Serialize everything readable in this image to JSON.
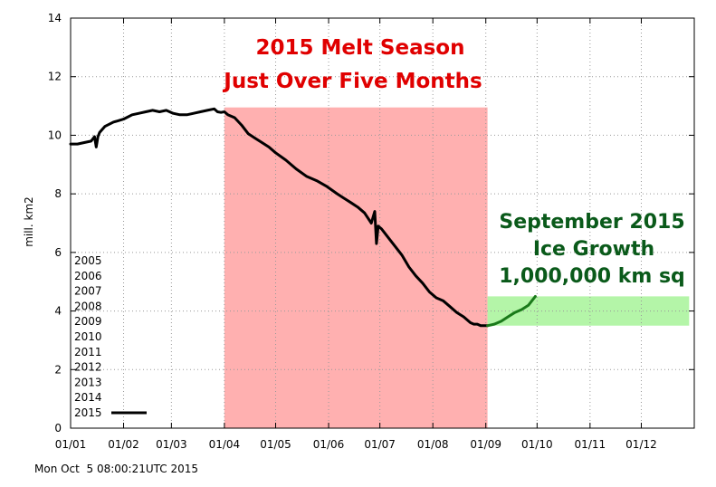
{
  "chart_data": {
    "type": "line",
    "title": "",
    "xlabel": "",
    "ylabel": "mill. km2",
    "ylim": [
      0,
      14
    ],
    "yticks": [
      0,
      2,
      4,
      6,
      8,
      10,
      12,
      14
    ],
    "xlim": [
      0,
      365
    ],
    "xticks": [
      {
        "label": "01/01",
        "day": 0
      },
      {
        "label": "01/02",
        "day": 31
      },
      {
        "label": "01/03",
        "day": 59
      },
      {
        "label": "01/04",
        "day": 90
      },
      {
        "label": "01/05",
        "day": 120
      },
      {
        "label": "01/06",
        "day": 151
      },
      {
        "label": "01/07",
        "day": 181
      },
      {
        "label": "01/08",
        "day": 212
      },
      {
        "label": "01/09",
        "day": 243
      },
      {
        "label": "01/10",
        "day": 273
      },
      {
        "label": "01/11",
        "day": 304
      },
      {
        "label": "01/12",
        "day": 334
      }
    ],
    "legend": [
      "2005",
      "2006",
      "2007",
      "2008",
      "2009",
      "2010",
      "2011",
      "2012",
      "2013",
      "2014",
      "2015"
    ],
    "legend_line_entry": "2015",
    "series": [
      {
        "name": "2015",
        "color": "#000000",
        "x": [
          0,
          4,
          8,
          12,
          14,
          15,
          16,
          17,
          20,
          25,
          28,
          31,
          36,
          40,
          44,
          48,
          52,
          56,
          60,
          64,
          68,
          72,
          76,
          80,
          84,
          86,
          88,
          90,
          92,
          96,
          100,
          104,
          108,
          112,
          116,
          120,
          126,
          132,
          138,
          144,
          150,
          156,
          160,
          164,
          168,
          172,
          176,
          178,
          179,
          180,
          182,
          186,
          190,
          194,
          198,
          202,
          206,
          210,
          214,
          218,
          222,
          226,
          230,
          234,
          236,
          238,
          240,
          242,
          244
        ],
        "y": [
          9.7,
          9.7,
          9.75,
          9.8,
          9.95,
          9.6,
          9.95,
          10.1,
          10.3,
          10.45,
          10.5,
          10.55,
          10.7,
          10.75,
          10.8,
          10.85,
          10.8,
          10.85,
          10.75,
          10.7,
          10.7,
          10.75,
          10.8,
          10.85,
          10.9,
          10.8,
          10.78,
          10.8,
          10.7,
          10.6,
          10.35,
          10.05,
          9.9,
          9.75,
          9.6,
          9.4,
          9.15,
          8.85,
          8.6,
          8.45,
          8.25,
          8.0,
          7.85,
          7.7,
          7.55,
          7.35,
          7.0,
          7.4,
          6.3,
          6.9,
          6.8,
          6.5,
          6.2,
          5.9,
          5.5,
          5.2,
          4.95,
          4.65,
          4.45,
          4.35,
          4.15,
          3.95,
          3.8,
          3.6,
          3.55,
          3.55,
          3.5,
          3.5,
          3.5
        ]
      },
      {
        "name": "September 2015 regrowth",
        "color": "#1a7a1a",
        "x": [
          244,
          248,
          252,
          256,
          260,
          264,
          268,
          270,
          272
        ],
        "y": [
          3.5,
          3.55,
          3.65,
          3.8,
          3.95,
          4.05,
          4.2,
          4.35,
          4.5
        ]
      }
    ],
    "regions": [
      {
        "name": "melt-season",
        "x_from": 90,
        "x_to": 244,
        "y_from": 0,
        "y_to": 10.95,
        "color": "#ffb0b0"
      },
      {
        "name": "ice-growth",
        "x_from": 244,
        "x_to": 362,
        "y_from": 3.5,
        "y_to": 4.5,
        "color": "#b4f5a8"
      }
    ],
    "annotations": [
      {
        "name": "melt-title-line1",
        "text": "2015 Melt Season",
        "color": "#e00000"
      },
      {
        "name": "melt-title-line2",
        "text": "Just Over Five Months",
        "color": "#e00000"
      },
      {
        "name": "growth-title-line1",
        "text": "September 2015",
        "color": "#0a5a1a"
      },
      {
        "name": "growth-title-line2",
        "text": "Ice Growth",
        "color": "#0a5a1a"
      },
      {
        "name": "growth-title-line3",
        "text": "1,000,000 km sq",
        "color": "#0a5a1a"
      }
    ],
    "timestamp": "Mon Oct  5 08:00:21UTC 2015"
  }
}
